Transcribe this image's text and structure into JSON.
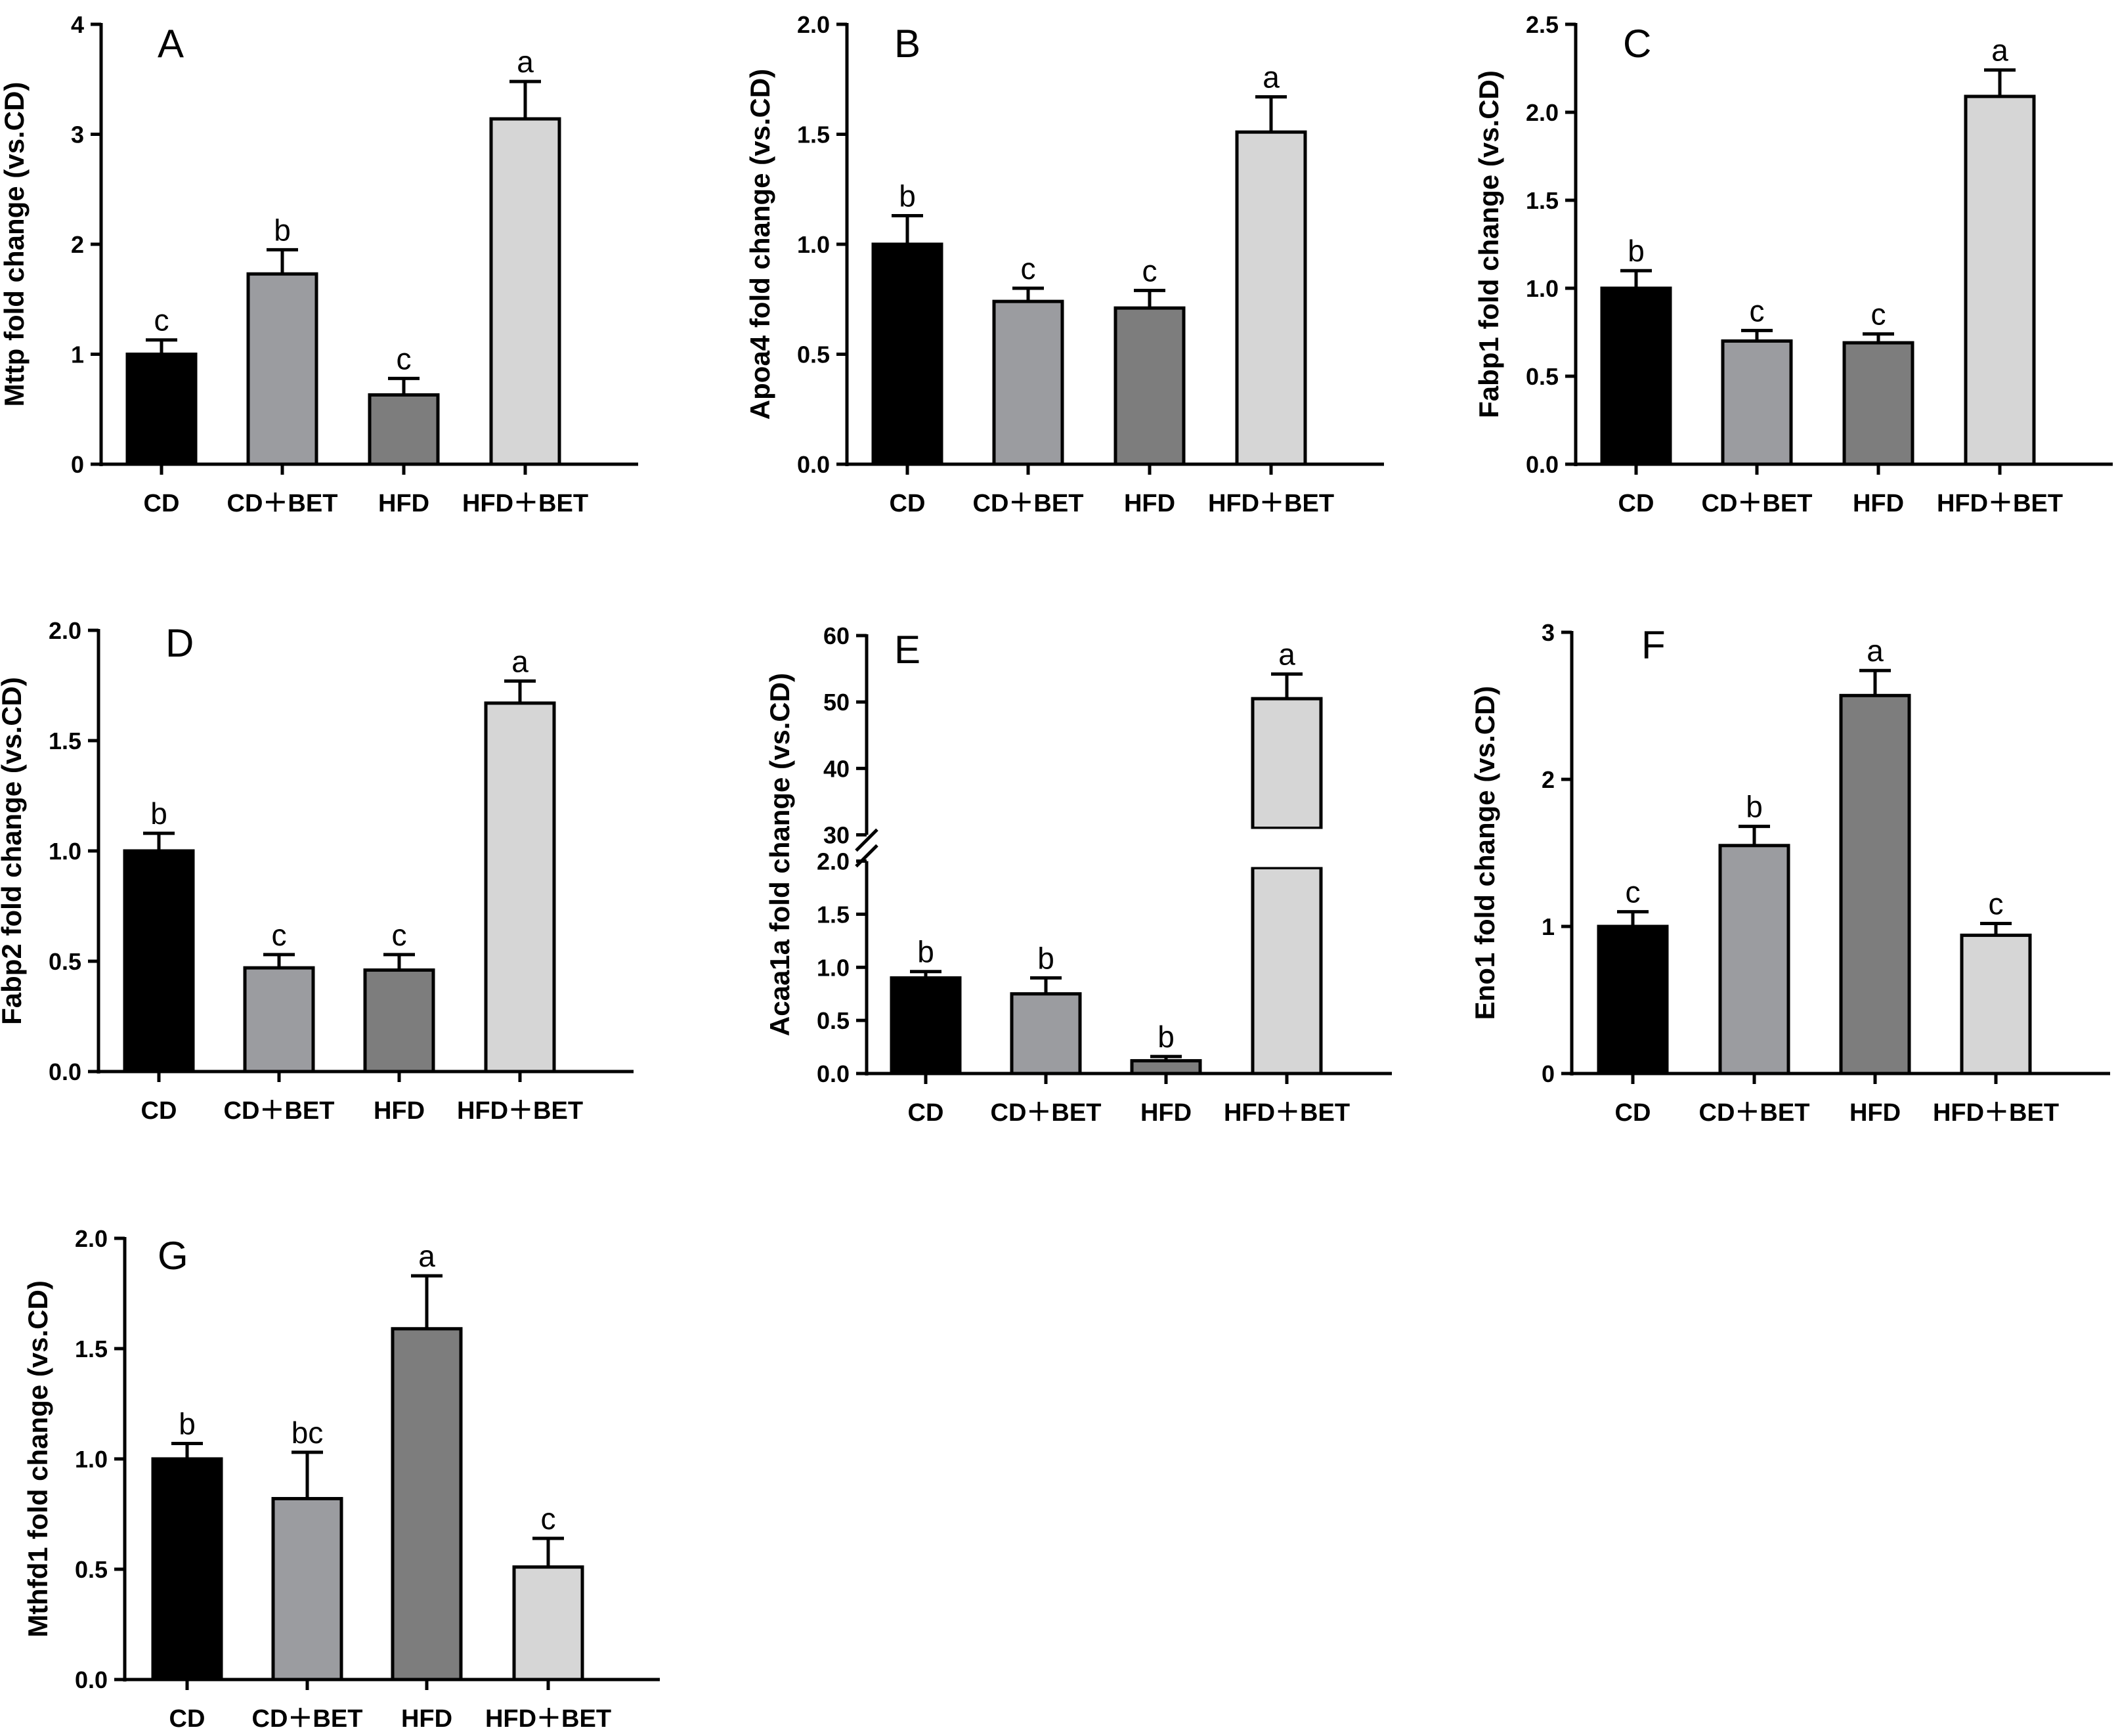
{
  "chart_data": [
    {
      "type": "bar",
      "panel": "A",
      "ylabel": "Mttp fold change (vs.CD)",
      "categories": [
        "CD",
        "CD＋BET",
        "HFD",
        "HFD＋BET"
      ],
      "values": [
        1.0,
        1.73,
        0.63,
        3.14
      ],
      "errors": [
        0.13,
        0.22,
        0.15,
        0.34
      ],
      "letters": [
        "c",
        "b",
        "c",
        "a"
      ],
      "ylim": [
        0,
        4
      ],
      "yticks": [
        0,
        1,
        2,
        3,
        4
      ],
      "ytick_labels": [
        "0",
        "1",
        "2",
        "3",
        "4"
      ]
    },
    {
      "type": "bar",
      "panel": "B",
      "ylabel": "Apoa4  fold change (vs.CD)",
      "categories": [
        "CD",
        "CD＋BET",
        "HFD",
        "HFD＋BET"
      ],
      "values": [
        1.0,
        0.74,
        0.71,
        1.51
      ],
      "errors": [
        0.13,
        0.06,
        0.08,
        0.16
      ],
      "letters": [
        "b",
        "c",
        "c",
        "a"
      ],
      "ylim": [
        0,
        2.0
      ],
      "yticks": [
        0,
        0.5,
        1.0,
        1.5,
        2.0
      ],
      "ytick_labels": [
        "0.0",
        "0.5",
        "1.0",
        "1.5",
        "2.0"
      ]
    },
    {
      "type": "bar",
      "panel": "C",
      "ylabel": "Fabp1 fold change (vs.CD)",
      "categories": [
        "CD",
        "CD＋BET",
        "HFD",
        "HFD＋BET"
      ],
      "values": [
        1.0,
        0.7,
        0.69,
        2.09
      ],
      "errors": [
        0.1,
        0.06,
        0.05,
        0.15
      ],
      "letters": [
        "b",
        "c",
        "c",
        "a"
      ],
      "ylim": [
        0,
        2.5
      ],
      "yticks": [
        0,
        0.5,
        1.0,
        1.5,
        2.0,
        2.5
      ],
      "ytick_labels": [
        "0.0",
        "0.5",
        "1.0",
        "1.5",
        "2.0",
        "2.5"
      ]
    },
    {
      "type": "bar",
      "panel": "D",
      "ylabel": "Fabp2 fold change (vs.CD)",
      "categories": [
        "CD",
        "CD＋BET",
        "HFD",
        "HFD＋BET"
      ],
      "values": [
        1.0,
        0.47,
        0.46,
        1.67
      ],
      "errors": [
        0.08,
        0.06,
        0.07,
        0.1
      ],
      "letters": [
        "b",
        "c",
        "c",
        "a"
      ],
      "ylim": [
        0,
        2.0
      ],
      "yticks": [
        0,
        0.5,
        1.0,
        1.5,
        2.0
      ],
      "ytick_labels": [
        "0.0",
        "0.5",
        "1.0",
        "1.5",
        "2.0"
      ]
    },
    {
      "type": "bar",
      "panel": "E",
      "ylabel": "Acaa1a fold change (vs.CD)",
      "categories": [
        "CD",
        "CD＋BET",
        "HFD",
        "HFD＋BET"
      ],
      "values": [
        0.9,
        0.75,
        0.12,
        50.5
      ],
      "errors": [
        0.06,
        0.15,
        0.04,
        3.7
      ],
      "letters": [
        "b",
        "b",
        "b",
        "a"
      ],
      "axis_break": [
        2.0,
        30
      ],
      "ylim_lower": [
        0,
        2.0
      ],
      "ylim_upper": [
        30,
        60
      ],
      "yticks_lower": [
        0,
        0.5,
        1.0,
        1.5,
        2.0
      ],
      "ytick_labels_lower": [
        "0.0",
        "0.5",
        "1.0",
        "1.5",
        "2.0"
      ],
      "yticks_upper": [
        30,
        40,
        50,
        60
      ],
      "ytick_labels_upper": [
        "30",
        "40",
        "50",
        "60"
      ]
    },
    {
      "type": "bar",
      "panel": "F",
      "ylabel": "Eno1 fold change (vs.CD)",
      "categories": [
        "CD",
        "CD＋BET",
        "HFD",
        "HFD＋BET"
      ],
      "values": [
        1.0,
        1.55,
        2.57,
        0.94
      ],
      "errors": [
        0.1,
        0.13,
        0.17,
        0.08
      ],
      "letters": [
        "c",
        "b",
        "a",
        "c"
      ],
      "ylim": [
        0,
        3
      ],
      "yticks": [
        0,
        1,
        2,
        3
      ],
      "ytick_labels": [
        "0",
        "1",
        "2",
        "3"
      ]
    },
    {
      "type": "bar",
      "panel": "G",
      "ylabel": "Mthfd1 fold change (vs.CD)",
      "categories": [
        "CD",
        "CD＋BET",
        "HFD",
        "HFD＋BET"
      ],
      "values": [
        1.0,
        0.82,
        1.59,
        0.51
      ],
      "errors": [
        0.07,
        0.21,
        0.24,
        0.13
      ],
      "letters": [
        "b",
        "bc",
        "a",
        "c"
      ],
      "ylim": [
        0,
        2.0
      ],
      "yticks": [
        0,
        0.5,
        1.0,
        1.5,
        2.0
      ],
      "ytick_labels": [
        "0.0",
        "0.5",
        "1.0",
        "1.5",
        "2.0"
      ]
    }
  ],
  "colors": {
    "bars": [
      "#000000",
      "#9b9ca0",
      "#7d7d7d",
      "#d6d6d6"
    ],
    "axis": "#000000",
    "background": "#ffffff"
  }
}
